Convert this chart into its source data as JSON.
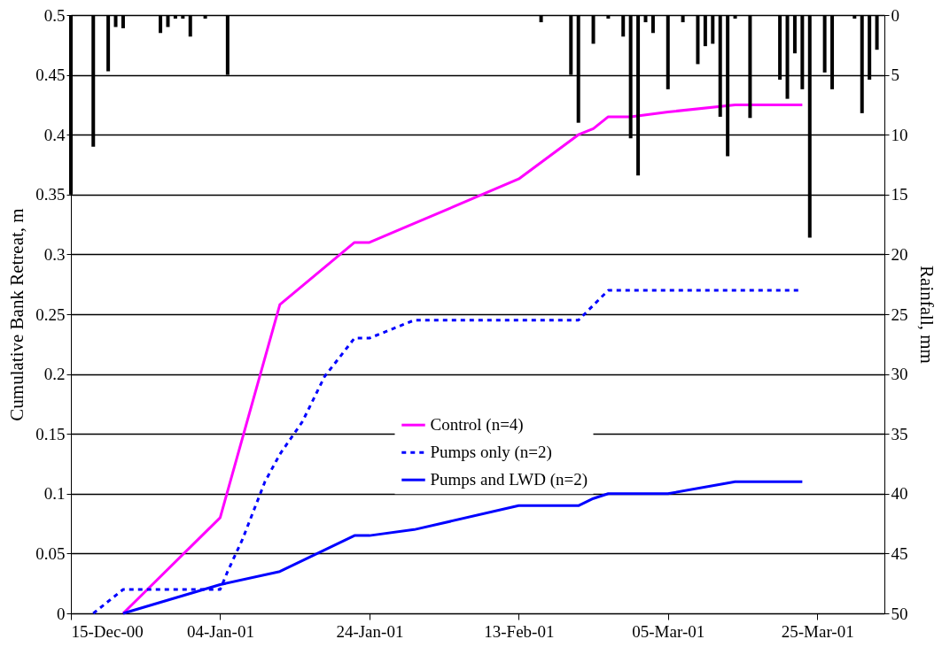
{
  "chart_data": {
    "type": "line",
    "ylabel": "Cumulative Bank Retreat, m",
    "y2label": "Rainfall, mm",
    "xlim": [
      "2000-12-15",
      "2001-04-03"
    ],
    "xticks": [
      {
        "value": "2000-12-15",
        "label": "15-Dec-00"
      },
      {
        "value": "2001-01-04",
        "label": "04-Jan-01"
      },
      {
        "value": "2001-01-24",
        "label": "24-Jan-01"
      },
      {
        "value": "2001-02-13",
        "label": "13-Feb-01"
      },
      {
        "value": "2001-03-05",
        "label": "05-Mar-01"
      },
      {
        "value": "2001-03-25",
        "label": "25-Mar-01"
      }
    ],
    "ylim": [
      0,
      0.5
    ],
    "yticks": [
      0,
      0.05,
      0.1,
      0.15,
      0.2,
      0.25,
      0.3,
      0.35,
      0.4,
      0.45,
      0.5
    ],
    "y2lim": [
      50,
      0
    ],
    "y2ticks": [
      0,
      5,
      10,
      15,
      20,
      25,
      30,
      35,
      40,
      45,
      50
    ],
    "grid": "y",
    "legend": "center right",
    "series": [
      {
        "name": "Control (n=4)",
        "color": "#ff00ff",
        "line_style": "solid",
        "x": [
          "2000-12-22",
          "2001-01-04",
          "2001-01-12",
          "2001-01-22",
          "2001-01-24",
          "2001-02-13",
          "2001-02-21",
          "2001-02-23",
          "2001-02-25",
          "2001-02-28",
          "2001-03-05",
          "2001-03-14",
          "2001-03-23"
        ],
        "values": [
          0,
          0.08,
          0.258,
          0.31,
          0.31,
          0.363,
          0.4,
          0.405,
          0.415,
          0.415,
          0.419,
          0.425,
          0.425
        ]
      },
      {
        "name": "Pumps only (n=2)",
        "color": "#0000ff",
        "line_style": "dotted",
        "x": [
          "2000-12-18",
          "2000-12-22",
          "2001-01-04",
          "2001-01-05",
          "2001-01-07",
          "2001-01-10",
          "2001-01-12",
          "2001-01-15",
          "2001-01-18",
          "2001-01-22",
          "2001-01-24",
          "2001-01-30",
          "2001-02-21",
          "2001-02-25",
          "2001-03-23"
        ],
        "values": [
          0,
          0.02,
          0.02,
          0.035,
          0.062,
          0.11,
          0.133,
          0.16,
          0.198,
          0.23,
          0.23,
          0.245,
          0.245,
          0.27,
          0.27
        ]
      },
      {
        "name": "Pumps and LWD (n=2)",
        "color": "#0000ff",
        "line_style": "solid",
        "x": [
          "2000-12-22",
          "2001-01-04",
          "2001-01-12",
          "2001-01-22",
          "2001-01-24",
          "2001-01-30",
          "2001-02-13",
          "2001-02-21",
          "2001-02-23",
          "2001-02-25",
          "2001-03-05",
          "2001-03-14",
          "2001-03-23"
        ],
        "values": [
          0,
          0.024,
          0.035,
          0.065,
          0.065,
          0.07,
          0.09,
          0.09,
          0.096,
          0.1,
          0.1,
          0.11,
          0.11
        ]
      },
      {
        "type": "bar",
        "axis": "y2",
        "color": "#000000",
        "x": [
          "2000-12-15",
          "2000-12-18",
          "2000-12-20",
          "2000-12-21",
          "2000-12-22",
          "2000-12-27",
          "2000-12-28",
          "2000-12-29",
          "2000-12-30",
          "2000-12-31",
          "2001-01-02",
          "2001-01-05",
          "2001-02-16",
          "2001-02-20",
          "2001-02-21",
          "2001-02-23",
          "2001-02-25",
          "2001-02-27",
          "2001-02-28",
          "2001-03-01",
          "2001-03-02",
          "2001-03-03",
          "2001-03-05",
          "2001-03-07",
          "2001-03-09",
          "2001-03-10",
          "2001-03-11",
          "2001-03-12",
          "2001-03-13",
          "2001-03-14",
          "2001-03-16",
          "2001-03-20",
          "2001-03-21",
          "2001-03-22",
          "2001-03-23",
          "2001-03-24",
          "2001-03-26",
          "2001-03-27",
          "2001-03-30",
          "2001-03-31",
          "2001-04-01",
          "2001-04-02"
        ],
        "values": [
          15,
          11,
          4.7,
          1,
          1.1,
          1.5,
          1,
          0.3,
          0.3,
          1.8,
          0.3,
          5,
          0.6,
          5,
          9,
          2.4,
          0.3,
          1.8,
          10.3,
          13.4,
          0.6,
          1.5,
          6.2,
          0.6,
          4.1,
          2.6,
          2.4,
          8.5,
          11.8,
          0.3,
          8.6,
          5.4,
          7,
          3.2,
          6.2,
          18.6,
          4.8,
          6.2,
          0.3,
          8.2,
          5.4,
          2.9
        ]
      }
    ]
  }
}
